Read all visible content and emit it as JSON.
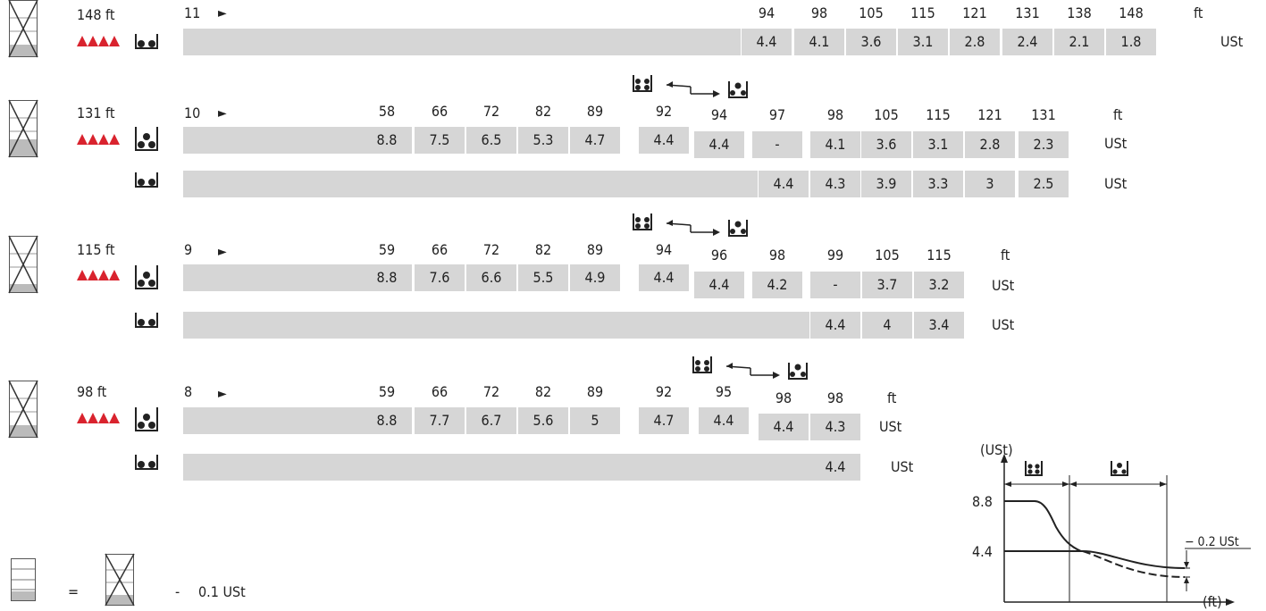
{
  "units": {
    "ft": "ft",
    "ust": "USt"
  },
  "sections": [
    {
      "height": "148 ft",
      "arrow": "11",
      "row1": {
        "ft": [
          "94",
          "98",
          "105",
          "115",
          "121",
          "131",
          "138",
          "148"
        ],
        "ust": [
          "4.4",
          "4.1",
          "3.6",
          "3.1",
          "2.8",
          "2.4",
          "2.1",
          "1.8"
        ]
      }
    },
    {
      "height": "131 ft",
      "arrow": "10",
      "row1": {
        "ftA": [
          "58",
          "66",
          "72",
          "82",
          "89",
          "92"
        ],
        "ustA": [
          "8.8",
          "7.5",
          "6.5",
          "5.3",
          "4.7",
          "4.4"
        ],
        "ftB": [
          "94",
          "97",
          "98",
          "105",
          "115",
          "121",
          "131"
        ],
        "ustB": [
          "4.4",
          "-",
          "4.1",
          "3.6",
          "3.1",
          "2.8",
          "2.3"
        ]
      },
      "row2": {
        "ust": [
          "4.4",
          "4.3",
          "3.9",
          "3.3",
          "3",
          "2.5"
        ]
      }
    },
    {
      "height": "115 ft",
      "arrow": "9",
      "row1": {
        "ftA": [
          "59",
          "66",
          "72",
          "82",
          "89",
          "94"
        ],
        "ustA": [
          "8.8",
          "7.6",
          "6.6",
          "5.5",
          "4.9",
          "4.4"
        ],
        "ftB": [
          "96",
          "98",
          "99",
          "105",
          "115"
        ],
        "ustB": [
          "4.4",
          "4.2",
          "-",
          "3.7",
          "3.2"
        ]
      },
      "row2": {
        "ust": [
          "4.4",
          "4",
          "3.4"
        ]
      }
    },
    {
      "height": "98 ft",
      "arrow": "8",
      "row1": {
        "ftA": [
          "59",
          "66",
          "72",
          "82",
          "89",
          "92",
          "95"
        ],
        "ustA": [
          "8.8",
          "7.7",
          "6.7",
          "5.6",
          "5",
          "4.7",
          "4.4"
        ],
        "ftB": [
          "98",
          "98"
        ],
        "ustB": [
          "4.4",
          "4.3"
        ]
      },
      "row2": {
        "ust": [
          "4.4"
        ]
      }
    }
  ],
  "legend": {
    "equals": "=",
    "minus": "-",
    "value": "0.1 USt"
  },
  "graph": {
    "yaxis": "(USt)",
    "xaxis": "(ft)",
    "y1": "8.8",
    "y2": "4.4",
    "delta": "− 0.2 USt"
  }
}
